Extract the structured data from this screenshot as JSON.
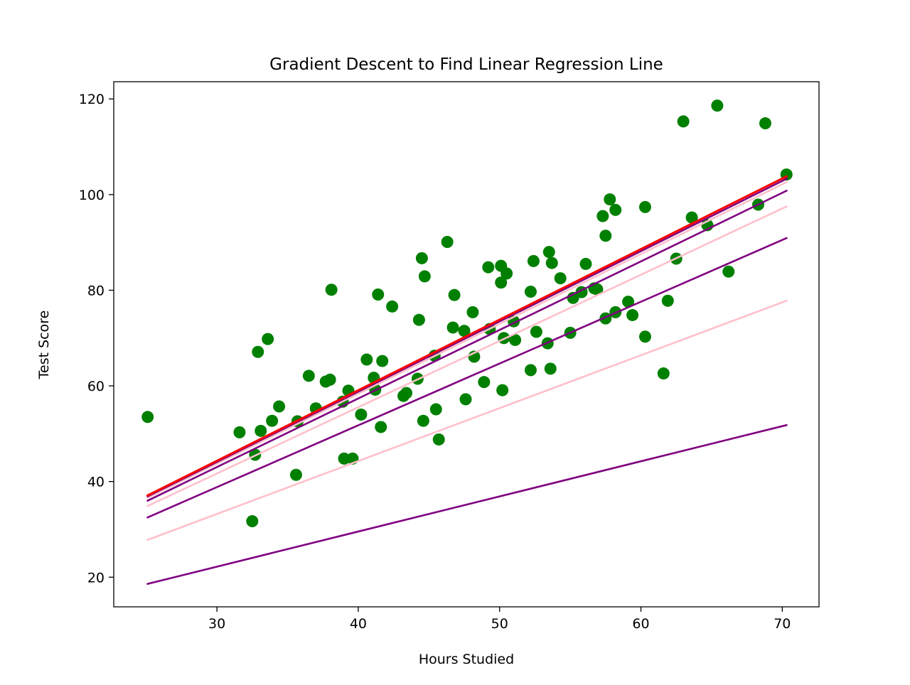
{
  "chart_data": {
    "type": "scatter",
    "title": "Gradient Descent to Find Linear Regression Line",
    "xlabel": "Hours Studied",
    "ylabel": "Test Score",
    "xlim": [
      22.7,
      72.6
    ],
    "ylim": [
      13.8,
      123.6
    ],
    "xticks": [
      30,
      40,
      50,
      60,
      70
    ],
    "yticks": [
      20,
      40,
      60,
      80,
      100,
      120
    ],
    "grid": false,
    "legend": "none",
    "colors": {
      "points": "#008000",
      "purple": "#800080",
      "pink": "#ffc0cb",
      "red": "#ff0000",
      "axis": "#000000"
    },
    "points": [
      [
        25.1,
        53.5
      ],
      [
        31.6,
        50.3
      ],
      [
        32.5,
        31.7
      ],
      [
        32.7,
        45.6
      ],
      [
        32.9,
        67.1
      ],
      [
        33.1,
        50.6
      ],
      [
        33.6,
        69.8
      ],
      [
        33.9,
        52.7
      ],
      [
        34.4,
        55.7
      ],
      [
        35.6,
        41.4
      ],
      [
        35.7,
        52.6
      ],
      [
        36.5,
        62.1
      ],
      [
        37.0,
        55.3
      ],
      [
        37.7,
        60.9
      ],
      [
        38.0,
        61.3
      ],
      [
        38.1,
        80.1
      ],
      [
        38.9,
        56.7
      ],
      [
        39.0,
        44.8
      ],
      [
        39.3,
        59.0
      ],
      [
        39.6,
        44.8
      ],
      [
        40.2,
        54.0
      ],
      [
        40.6,
        65.5
      ],
      [
        41.1,
        61.7
      ],
      [
        41.2,
        59.2
      ],
      [
        41.4,
        79.1
      ],
      [
        41.6,
        51.4
      ],
      [
        41.7,
        65.2
      ],
      [
        42.4,
        76.6
      ],
      [
        43.2,
        57.9
      ],
      [
        43.4,
        58.5
      ],
      [
        44.2,
        61.5
      ],
      [
        44.3,
        73.8
      ],
      [
        44.5,
        86.7
      ],
      [
        44.6,
        52.7
      ],
      [
        44.7,
        82.9
      ],
      [
        45.4,
        66.3
      ],
      [
        45.5,
        55.1
      ],
      [
        45.7,
        48.8
      ],
      [
        46.3,
        90.1
      ],
      [
        46.7,
        72.2
      ],
      [
        46.8,
        79.0
      ],
      [
        47.5,
        71.5
      ],
      [
        47.6,
        57.2
      ],
      [
        48.1,
        75.4
      ],
      [
        48.2,
        66.1
      ],
      [
        48.9,
        60.8
      ],
      [
        49.2,
        84.8
      ],
      [
        49.3,
        71.9
      ],
      [
        50.1,
        85.1
      ],
      [
        50.1,
        81.6
      ],
      [
        50.2,
        59.1
      ],
      [
        50.3,
        70.0
      ],
      [
        50.5,
        83.5
      ],
      [
        51.0,
        73.5
      ],
      [
        51.1,
        69.6
      ],
      [
        52.2,
        63.3
      ],
      [
        52.2,
        79.7
      ],
      [
        52.4,
        86.1
      ],
      [
        52.6,
        71.3
      ],
      [
        53.4,
        68.9
      ],
      [
        53.5,
        88.0
      ],
      [
        53.6,
        63.6
      ],
      [
        53.7,
        85.7
      ],
      [
        54.3,
        82.5
      ],
      [
        55.0,
        71.1
      ],
      [
        55.2,
        78.4
      ],
      [
        55.8,
        79.6
      ],
      [
        56.1,
        85.5
      ],
      [
        56.7,
        80.4
      ],
      [
        56.9,
        80.2
      ],
      [
        57.3,
        95.5
      ],
      [
        57.5,
        91.4
      ],
      [
        57.5,
        74.1
      ],
      [
        57.8,
        99.0
      ],
      [
        58.2,
        96.8
      ],
      [
        58.2,
        75.4
      ],
      [
        59.1,
        77.6
      ],
      [
        59.4,
        74.8
      ],
      [
        60.3,
        97.4
      ],
      [
        60.3,
        70.3
      ],
      [
        61.6,
        62.6
      ],
      [
        61.9,
        77.8
      ],
      [
        62.5,
        86.6
      ],
      [
        63.0,
        115.3
      ],
      [
        63.6,
        95.2
      ],
      [
        64.7,
        93.6
      ],
      [
        65.4,
        118.6
      ],
      [
        66.2,
        83.9
      ],
      [
        68.3,
        97.9
      ],
      [
        68.8,
        114.9
      ],
      [
        70.3,
        104.2
      ]
    ],
    "series": [
      {
        "color": "#800080",
        "x": [
          25.1,
          70.3
        ],
        "y": [
          18.6,
          51.8
        ]
      },
      {
        "color": "#ffc0cb",
        "x": [
          25.1,
          70.3
        ],
        "y": [
          27.8,
          77.8
        ]
      },
      {
        "color": "#800080",
        "x": [
          25.1,
          70.3
        ],
        "y": [
          32.5,
          90.9
        ]
      },
      {
        "color": "#ffc0cb",
        "x": [
          25.1,
          70.3
        ],
        "y": [
          34.9,
          97.5
        ]
      },
      {
        "color": "#800080",
        "x": [
          25.1,
          70.3
        ],
        "y": [
          36.0,
          100.8
        ]
      },
      {
        "color": "#ffc0cb",
        "x": [
          25.1,
          70.3
        ],
        "y": [
          36.6,
          102.6
        ]
      },
      {
        "color": "#800080",
        "x": [
          25.1,
          70.3
        ],
        "y": [
          36.9,
          103.3
        ]
      },
      {
        "color": "#ff0000",
        "x": [
          25.1,
          70.3
        ],
        "y": [
          37.1,
          103.8
        ]
      }
    ]
  }
}
